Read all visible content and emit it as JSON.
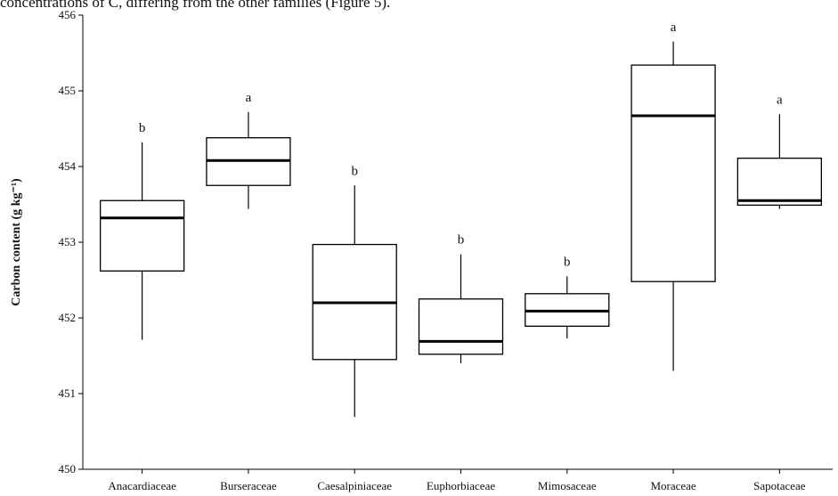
{
  "caption": "concentrations of C, differing from the other families (Figure 5).",
  "chart_data": {
    "type": "box",
    "ylabel": "Carbon content (g kg⁻¹)",
    "categories": [
      "Anacardiaceae",
      "Burseraceae",
      "Caesalpiniaceae",
      "Euphorbiaceae",
      "Mimosaceae",
      "Moraceae",
      "Sapotaceae"
    ],
    "whisker_low": [
      451.71,
      453.44,
      450.69,
      451.4,
      451.73,
      451.3,
      453.44
    ],
    "q1": [
      452.62,
      453.75,
      451.45,
      451.52,
      451.89,
      452.48,
      453.49
    ],
    "median": [
      453.32,
      454.08,
      452.2,
      451.69,
      452.09,
      454.67,
      453.55
    ],
    "q3": [
      453.55,
      454.38,
      452.97,
      452.25,
      452.32,
      455.34,
      454.11
    ],
    "whisker_high": [
      454.32,
      454.72,
      453.75,
      452.84,
      452.55,
      455.65,
      454.69
    ],
    "letters": [
      "b",
      "a",
      "b",
      "b",
      "b",
      "a",
      "a"
    ],
    "color": "#000000",
    "ylim": [
      450,
      456
    ],
    "yticks": [
      450,
      451,
      452,
      453,
      454,
      455,
      456
    ]
  }
}
